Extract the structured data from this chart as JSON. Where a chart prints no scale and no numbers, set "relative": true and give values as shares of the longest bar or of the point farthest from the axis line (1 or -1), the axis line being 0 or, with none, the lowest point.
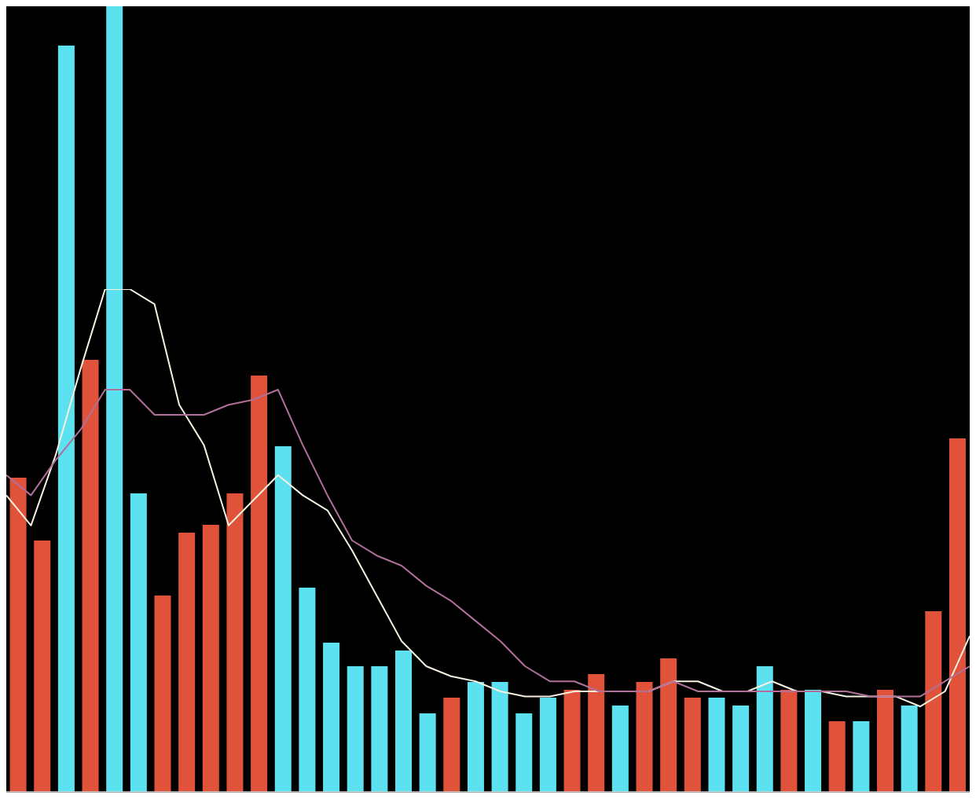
{
  "chart_data": [
    {
      "type": "bar",
      "relative": true,
      "tick_labels": false,
      "legend": false,
      "categories": [
        null,
        null,
        null,
        null,
        null,
        null,
        null,
        null,
        null,
        null,
        null,
        null,
        null,
        null,
        null,
        null,
        null,
        null,
        null,
        null,
        null,
        null,
        null,
        null,
        null,
        null,
        null,
        null,
        null,
        null,
        null,
        null,
        null,
        null,
        null,
        null,
        null,
        null,
        null,
        null
      ],
      "values": [
        0.4,
        0.32,
        0.95,
        0.55,
        1,
        0.38,
        0.25,
        0.33,
        0.34,
        0.38,
        0.53,
        0.44,
        0.26,
        0.19,
        0.16,
        0.16,
        0.18,
        0.1,
        0.12,
        0.14,
        0.14,
        0.1,
        0.12,
        0.13,
        0.15,
        0.11,
        0.14,
        0.17,
        0.12,
        0.12,
        0.11,
        0.16,
        0.13,
        0.13,
        0.09,
        0.09,
        0.13,
        0.11,
        0.23,
        0.45
      ],
      "colors": [
        "#e0533a",
        "#e0533a",
        "#5ce1f0",
        "#e0533a",
        "#5ce1f0",
        "#5ce1f0",
        "#e0533a",
        "#e0533a",
        "#e0533a",
        "#e0533a",
        "#e0533a",
        "#5ce1f0",
        "#5ce1f0",
        "#5ce1f0",
        "#5ce1f0",
        "#5ce1f0",
        "#5ce1f0",
        "#5ce1f0",
        "#e0533a",
        "#5ce1f0",
        "#5ce1f0",
        "#5ce1f0",
        "#5ce1f0",
        "#e0533a",
        "#e0533a",
        "#5ce1f0",
        "#e0533a",
        "#e0533a",
        "#e0533a",
        "#5ce1f0",
        "#5ce1f0",
        "#5ce1f0",
        "#e0533a",
        "#5ce1f0",
        "#e0533a",
        "#5ce1f0",
        "#e0533a",
        "#5ce1f0",
        "#e0533a",
        "#e0533a"
      ]
    },
    {
      "type": "line",
      "relative": true,
      "tick_labels": false,
      "legend": false,
      "marker": "none",
      "categories": [
        null,
        null,
        null,
        null,
        null,
        null,
        null,
        null,
        null,
        null,
        null,
        null,
        null,
        null,
        null,
        null,
        null,
        null,
        null,
        null,
        null,
        null,
        null,
        null,
        null,
        null,
        null,
        null,
        null,
        null,
        null,
        null,
        null,
        null,
        null,
        null,
        null,
        null,
        null,
        null
      ],
      "series": [
        {
          "color": "#f5f0e0",
          "values": [
            0.59,
            0.53,
            0.67,
            0.84,
            1,
            1,
            0.97,
            0.77,
            0.69,
            0.53,
            0.58,
            0.63,
            0.59,
            0.56,
            0.48,
            0.39,
            0.3,
            0.25,
            0.23,
            0.22,
            0.2,
            0.19,
            0.19,
            0.2,
            0.2,
            0.2,
            0.2,
            0.22,
            0.22,
            0.2,
            0.2,
            0.22,
            0.2,
            0.2,
            0.19,
            0.19,
            0.19,
            0.17,
            0.2,
            0.31
          ]
        },
        {
          "color": "#b0709a",
          "values": [
            0.63,
            0.59,
            0.66,
            0.72,
            0.8,
            0.8,
            0.75,
            0.75,
            0.75,
            0.77,
            0.78,
            0.8,
            0.69,
            0.59,
            0.5,
            0.47,
            0.45,
            0.41,
            0.38,
            0.34,
            0.3,
            0.25,
            0.22,
            0.22,
            0.2,
            0.2,
            0.2,
            0.22,
            0.2,
            0.2,
            0.2,
            0.2,
            0.2,
            0.2,
            0.2,
            0.19,
            0.19,
            0.19,
            0.22,
            0.25
          ]
        }
      ]
    }
  ]
}
